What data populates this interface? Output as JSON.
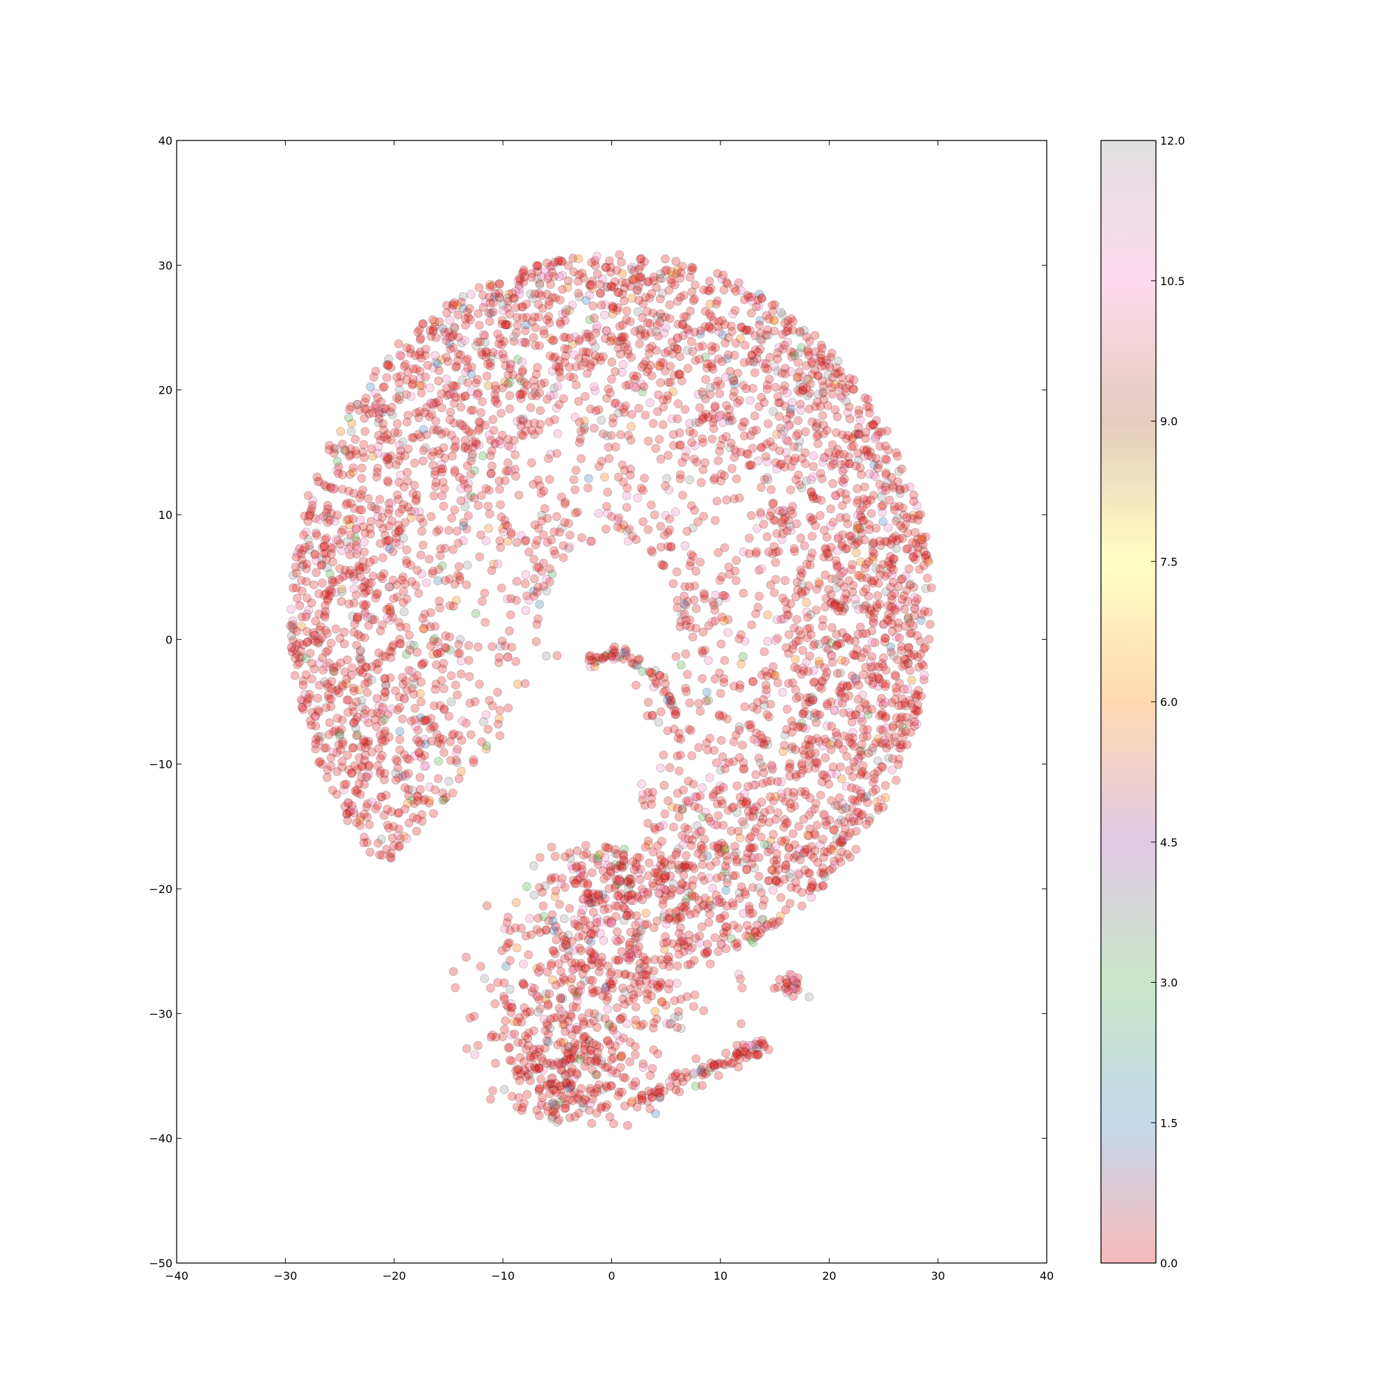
{
  "chart_data": {
    "type": "scatter",
    "title": "",
    "xlabel": "",
    "ylabel": "",
    "xlim": [
      -40,
      40
    ],
    "ylim": [
      -50,
      40
    ],
    "x_ticks": [
      -40,
      -30,
      -20,
      -10,
      0,
      10,
      20,
      30,
      40
    ],
    "x_tick_labels": [
      "−40",
      "−30",
      "−20",
      "−10",
      "0",
      "10",
      "20",
      "30",
      "40"
    ],
    "y_ticks": [
      -50,
      -40,
      -30,
      -20,
      -10,
      0,
      10,
      20,
      30,
      40
    ],
    "y_tick_labels": [
      "−50",
      "−40",
      "−30",
      "−20",
      "−10",
      "0",
      "10",
      "20",
      "30",
      "40"
    ],
    "grid": false,
    "marker_alpha": 0.3,
    "colorbar": {
      "colormap": "Set1",
      "range": [
        0.0,
        12.0
      ],
      "ticks": [
        0.0,
        1.5,
        3.0,
        4.5,
        6.0,
        7.5,
        9.0,
        10.5,
        12.0
      ],
      "tick_labels": [
        "0.0",
        "1.5",
        "3.0",
        "4.5",
        "6.0",
        "7.5",
        "9.0",
        "10.5",
        "12.0"
      ],
      "colors": [
        "#e41a1c",
        "#377eb8",
        "#4daf4a",
        "#984ea3",
        "#ff7f00",
        "#ffff33",
        "#a65628",
        "#f781bf",
        "#999999"
      ]
    },
    "dominant_color_value": 0.0,
    "structure": [
      {
        "shape": "ring",
        "center": [
          0,
          2
        ],
        "inner_radius": 11,
        "outer_radius": 29,
        "gap_from_deg": 225,
        "gap_to_deg": 280
      },
      {
        "shape": "tail",
        "x_range": [
          -11,
          12
        ],
        "y_range": [
          -38,
          -17
        ]
      },
      {
        "shape": "streak",
        "from": [
          2,
          -37
        ],
        "to": [
          14,
          -32.5
        ]
      },
      {
        "shape": "cluster",
        "center": [
          16.5,
          -27.8
        ],
        "spread": 1.2
      },
      {
        "shape": "arc",
        "center": [
          0,
          -4
        ],
        "from": [
          -2,
          -2
        ],
        "to": [
          6,
          -6
        ]
      }
    ],
    "sample_count": 5200
  }
}
